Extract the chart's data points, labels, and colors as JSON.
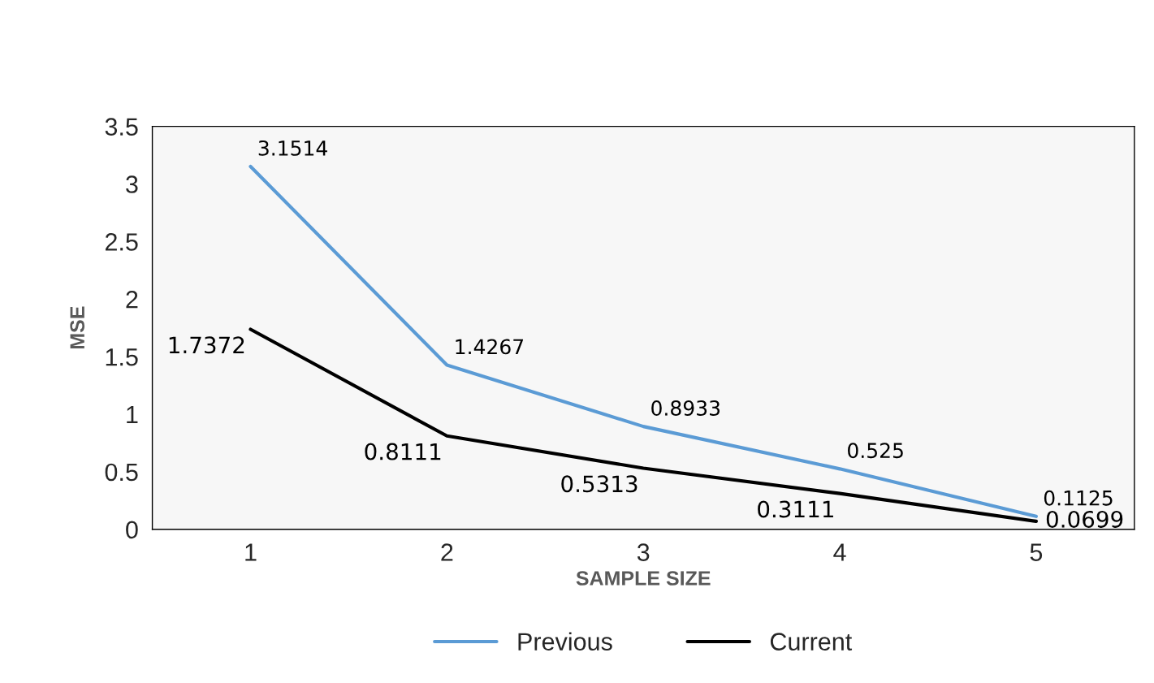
{
  "chart_data": {
    "type": "line",
    "xlabel": "SAMPLE SIZE",
    "ylabel": "MSE",
    "categories": [
      "1",
      "2",
      "3",
      "4",
      "5"
    ],
    "series": [
      {
        "name": "Previous",
        "color": "#5b9bd5",
        "values": [
          3.1514,
          1.4267,
          0.8933,
          0.525,
          0.1125
        ]
      },
      {
        "name": "Current",
        "color": "#000000",
        "values": [
          1.7372,
          0.8111,
          0.5313,
          0.3111,
          0.0699
        ]
      }
    ],
    "ylim": [
      0,
      3.5
    ],
    "yticks": [
      0,
      0.5,
      1,
      1.5,
      2,
      2.5,
      3,
      3.5
    ],
    "data_labels": true,
    "grid": false,
    "legend": "bottom",
    "marker": "none",
    "line_style": "solid"
  }
}
